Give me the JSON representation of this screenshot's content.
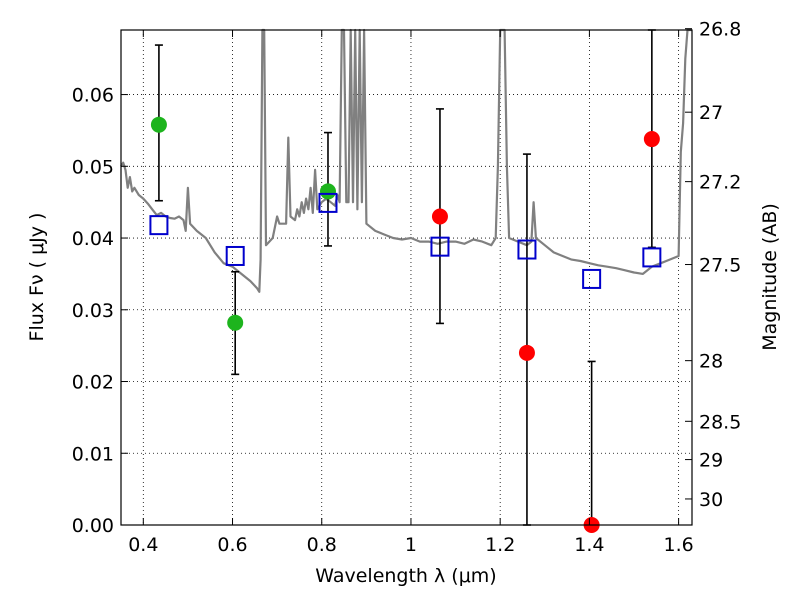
{
  "chart_data": {
    "type": "scatter",
    "xlabel": "Wavelength  λ (μm)",
    "ylabel": "Flux  Fν  ( μJy )",
    "ylabel_right": "Magnitude (AB)",
    "xlim": [
      0.35,
      1.63
    ],
    "ylim": [
      0.0,
      0.069
    ],
    "grid": true,
    "x_ticks": [
      {
        "value": 0.4,
        "label": "0.4"
      },
      {
        "value": 0.6,
        "label": "0.6"
      },
      {
        "value": 0.8,
        "label": "0.8"
      },
      {
        "value": 1.0,
        "label": "1"
      },
      {
        "value": 1.2,
        "label": "1.2"
      },
      {
        "value": 1.4,
        "label": "1.4"
      },
      {
        "value": 1.6,
        "label": "1.6"
      }
    ],
    "y_ticks": [
      {
        "value": 0.0,
        "label": "0.00"
      },
      {
        "value": 0.01,
        "label": "0.01"
      },
      {
        "value": 0.02,
        "label": "0.02"
      },
      {
        "value": 0.03,
        "label": "0.03"
      },
      {
        "value": 0.04,
        "label": "0.04"
      },
      {
        "value": 0.05,
        "label": "0.05"
      },
      {
        "value": 0.06,
        "label": "0.06"
      }
    ],
    "mag_ticks": [
      {
        "value": 26.8,
        "label": "26.8"
      },
      {
        "value": 27.0,
        "label": "27"
      },
      {
        "value": 27.2,
        "label": "27.2"
      },
      {
        "value": 27.5,
        "label": "27.5"
      },
      {
        "value": 28.0,
        "label": "28"
      },
      {
        "value": 28.5,
        "label": "28.5"
      },
      {
        "value": 29.0,
        "label": "29"
      },
      {
        "value": 30.0,
        "label": "30"
      }
    ],
    "colors": {
      "detection": "#1db41d",
      "nondetection": "#ff0000",
      "model": "#0000cc",
      "sed": "#808080",
      "errorbar": "#000000"
    },
    "series": [
      {
        "marker": "circle",
        "color": "#1db41d",
        "points": [
          {
            "x": 0.435,
            "y": 0.0558,
            "ylo": 0.0452,
            "yhi": 0.0669
          },
          {
            "x": 0.606,
            "y": 0.0282,
            "ylo": 0.021,
            "yhi": 0.0353
          },
          {
            "x": 0.814,
            "y": 0.0465,
            "ylo": 0.0389,
            "yhi": 0.0547
          }
        ]
      },
      {
        "marker": "circle",
        "color": "#ff0000",
        "points": [
          {
            "x": 1.065,
            "y": 0.043,
            "ylo": 0.0281,
            "yhi": 0.058
          },
          {
            "x": 1.26,
            "y": 0.024,
            "ylo": 0.0,
            "yhi": 0.0517
          },
          {
            "x": 1.405,
            "y": 0.0,
            "ylo": 0.0,
            "yhi": 0.0228
          },
          {
            "x": 1.54,
            "y": 0.0538,
            "ylo": 0.0387,
            "yhi": 0.069
          }
        ]
      },
      {
        "marker": "square",
        "color": "#0000cc",
        "points": [
          {
            "x": 0.435,
            "y": 0.0418
          },
          {
            "x": 0.606,
            "y": 0.0375
          },
          {
            "x": 0.814,
            "y": 0.0449
          },
          {
            "x": 1.065,
            "y": 0.0388
          },
          {
            "x": 1.26,
            "y": 0.0384
          },
          {
            "x": 1.405,
            "y": 0.0343
          },
          {
            "x": 1.54,
            "y": 0.0373
          }
        ]
      }
    ],
    "sed_line": {
      "color": "#808080",
      "points": [
        [
          0.35,
          0.05
        ],
        [
          0.355,
          0.0505
        ],
        [
          0.36,
          0.0495
        ],
        [
          0.365,
          0.047
        ],
        [
          0.37,
          0.0485
        ],
        [
          0.375,
          0.0465
        ],
        [
          0.38,
          0.047
        ],
        [
          0.39,
          0.046
        ],
        [
          0.4,
          0.0455
        ],
        [
          0.41,
          0.0448
        ],
        [
          0.42,
          0.044
        ],
        [
          0.43,
          0.0432
        ],
        [
          0.44,
          0.0435
        ],
        [
          0.45,
          0.043
        ],
        [
          0.46,
          0.0428
        ],
        [
          0.47,
          0.0427
        ],
        [
          0.48,
          0.043
        ],
        [
          0.49,
          0.0425
        ],
        [
          0.495,
          0.041
        ],
        [
          0.5,
          0.047
        ],
        [
          0.505,
          0.042
        ],
        [
          0.52,
          0.041
        ],
        [
          0.54,
          0.04
        ],
        [
          0.56,
          0.038
        ],
        [
          0.58,
          0.0365
        ],
        [
          0.6,
          0.036
        ],
        [
          0.62,
          0.035
        ],
        [
          0.64,
          0.034
        ],
        [
          0.655,
          0.033
        ],
        [
          0.66,
          0.0325
        ],
        [
          0.663,
          0.037
        ],
        [
          0.667,
          0.069
        ],
        [
          0.671,
          0.069
        ],
        [
          0.675,
          0.039
        ],
        [
          0.69,
          0.04
        ],
        [
          0.7,
          0.043
        ],
        [
          0.705,
          0.042
        ],
        [
          0.72,
          0.042
        ],
        [
          0.725,
          0.054
        ],
        [
          0.73,
          0.043
        ],
        [
          0.74,
          0.0425
        ],
        [
          0.745,
          0.044
        ],
        [
          0.75,
          0.043
        ],
        [
          0.755,
          0.045
        ],
        [
          0.76,
          0.0435
        ],
        [
          0.765,
          0.0455
        ],
        [
          0.77,
          0.044
        ],
        [
          0.775,
          0.047
        ],
        [
          0.78,
          0.0435
        ],
        [
          0.785,
          0.0495
        ],
        [
          0.79,
          0.044
        ],
        [
          0.8,
          0.045
        ],
        [
          0.81,
          0.0455
        ],
        [
          0.82,
          0.045
        ],
        [
          0.83,
          0.0445
        ],
        [
          0.835,
          0.046
        ],
        [
          0.84,
          0.045
        ],
        [
          0.845,
          0.069
        ],
        [
          0.85,
          0.069
        ],
        [
          0.855,
          0.045
        ],
        [
          0.86,
          0.045
        ],
        [
          0.865,
          0.069
        ],
        [
          0.87,
          0.045
        ],
        [
          0.875,
          0.069
        ],
        [
          0.88,
          0.044
        ],
        [
          0.885,
          0.069
        ],
        [
          0.89,
          0.045
        ],
        [
          0.895,
          0.069
        ],
        [
          0.9,
          0.042
        ],
        [
          0.92,
          0.041
        ],
        [
          0.94,
          0.0405
        ],
        [
          0.96,
          0.04
        ],
        [
          0.98,
          0.0398
        ],
        [
          1.0,
          0.04
        ],
        [
          1.02,
          0.0395
        ],
        [
          1.04,
          0.0395
        ],
        [
          1.06,
          0.0392
        ],
        [
          1.08,
          0.0395
        ],
        [
          1.1,
          0.0395
        ],
        [
          1.12,
          0.0392
        ],
        [
          1.14,
          0.0398
        ],
        [
          1.16,
          0.0395
        ],
        [
          1.18,
          0.039
        ],
        [
          1.19,
          0.04
        ],
        [
          1.195,
          0.05
        ],
        [
          1.2,
          0.069
        ],
        [
          1.21,
          0.069
        ],
        [
          1.215,
          0.05
        ],
        [
          1.22,
          0.04
        ],
        [
          1.24,
          0.0395
        ],
        [
          1.26,
          0.039
        ],
        [
          1.27,
          0.0395
        ],
        [
          1.275,
          0.045
        ],
        [
          1.28,
          0.04
        ],
        [
          1.3,
          0.039
        ],
        [
          1.32,
          0.038
        ],
        [
          1.34,
          0.0375
        ],
        [
          1.36,
          0.037
        ],
        [
          1.38,
          0.0368
        ],
        [
          1.4,
          0.0365
        ],
        [
          1.42,
          0.0362
        ],
        [
          1.44,
          0.036
        ],
        [
          1.46,
          0.0358
        ],
        [
          1.48,
          0.0355
        ],
        [
          1.5,
          0.0352
        ],
        [
          1.52,
          0.035
        ],
        [
          1.54,
          0.036
        ],
        [
          1.56,
          0.0365
        ],
        [
          1.58,
          0.037
        ],
        [
          1.6,
          0.0375
        ],
        [
          1.605,
          0.052
        ],
        [
          1.61,
          0.056
        ],
        [
          1.615,
          0.065
        ],
        [
          1.62,
          0.069
        ],
        [
          1.63,
          0.069
        ]
      ]
    }
  }
}
